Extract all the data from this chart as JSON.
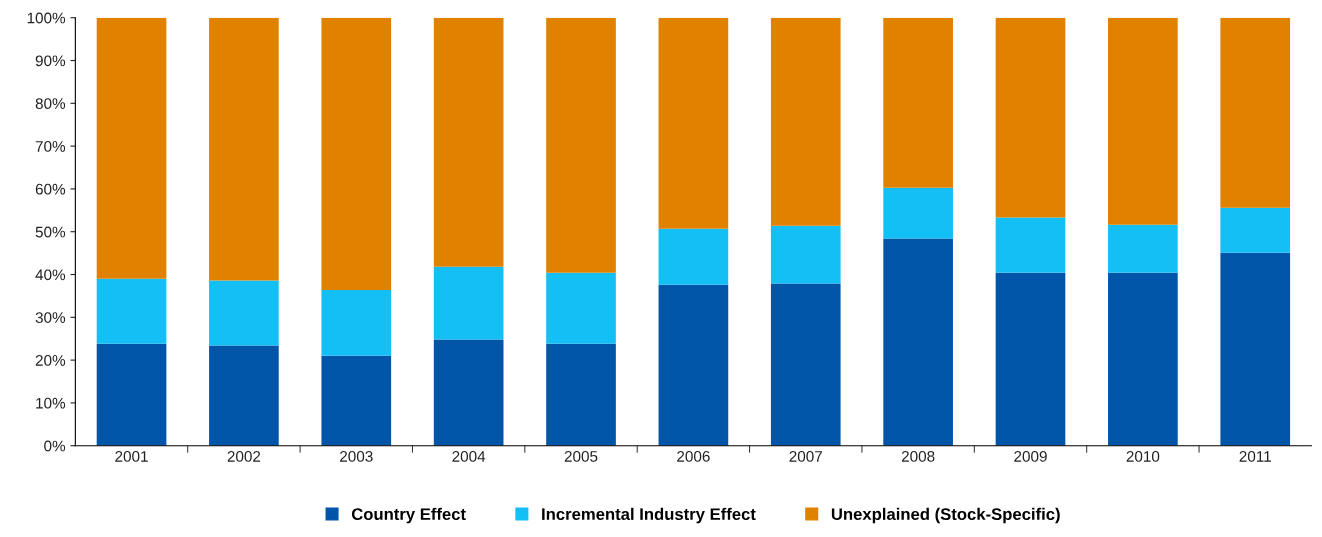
{
  "chart_data": {
    "type": "bar",
    "stacked": true,
    "categories": [
      "2001",
      "2002",
      "2003",
      "2004",
      "2005",
      "2006",
      "2007",
      "2008",
      "2009",
      "2010",
      "2011"
    ],
    "series": [
      {
        "name": "Country Effect",
        "color": "#0055a8",
        "values": [
          23.8,
          23.4,
          21.0,
          24.8,
          23.8,
          37.6,
          37.9,
          48.4,
          40.4,
          40.4,
          45.1
        ]
      },
      {
        "name": "Incremental Industry Effect",
        "color": "#14bff5",
        "values": [
          15.2,
          15.2,
          15.4,
          17.0,
          16.6,
          13.1,
          13.5,
          11.9,
          12.9,
          11.2,
          10.5
        ]
      },
      {
        "name": "Unexplained (Stock-Specific)",
        "color": "#e08200",
        "values": [
          61.0,
          61.4,
          63.6,
          58.2,
          59.6,
          49.3,
          48.6,
          39.7,
          46.7,
          48.4,
          44.4
        ]
      }
    ],
    "ylim": [
      0,
      100
    ],
    "yticks": [
      {
        "value": 0,
        "label": "0%"
      },
      {
        "value": 10,
        "label": "10%"
      },
      {
        "value": 20,
        "label": "20%"
      },
      {
        "value": 30,
        "label": "30%"
      },
      {
        "value": 40,
        "label": "40%"
      },
      {
        "value": 50,
        "label": "50%"
      },
      {
        "value": 60,
        "label": "60%"
      },
      {
        "value": 70,
        "label": "70%"
      },
      {
        "value": 80,
        "label": "80%"
      },
      {
        "value": 90,
        "label": "90%"
      },
      {
        "value": 100,
        "label": "100%"
      }
    ],
    "grid": false,
    "legend": "bottom"
  }
}
